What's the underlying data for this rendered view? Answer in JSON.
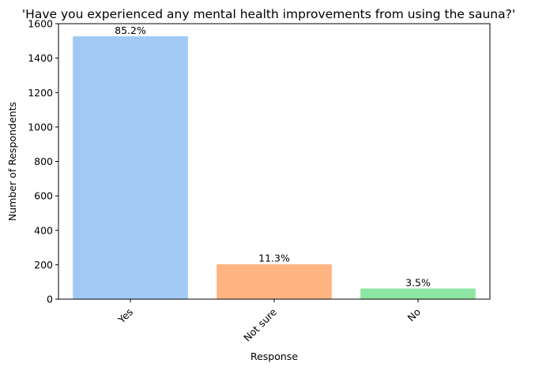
{
  "chart_data": {
    "type": "bar",
    "title": "'Have you experienced any mental health improvements from using the sauna?'",
    "xlabel": "Response",
    "ylabel": "Number of Respondents",
    "categories": [
      "Yes",
      "Not sure",
      "No"
    ],
    "values": [
      1527,
      203,
      62
    ],
    "data_labels": [
      "85.2%",
      "11.3%",
      "3.5%"
    ],
    "colors": [
      "#a1c9f4",
      "#ffb482",
      "#8de5a1"
    ],
    "ylim": [
      0,
      1600
    ],
    "yticks": [
      0,
      200,
      400,
      600,
      800,
      1000,
      1200,
      1400,
      1600
    ],
    "grid": false,
    "legend": "none",
    "xtick_rotation": 45
  }
}
